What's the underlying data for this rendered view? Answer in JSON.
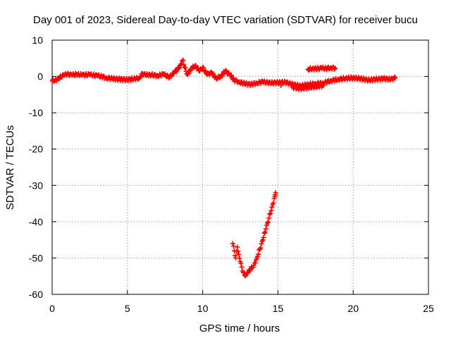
{
  "chart_data": {
    "type": "scatter",
    "title": "Day 001 of 2023, Sidereal Day-to-day VTEC variation (SDTVAR) for receiver bucu",
    "xlabel": "GPS time / hours",
    "ylabel": "SDTVAR / TECUs",
    "xlim": [
      0,
      25
    ],
    "ylim": [
      -60,
      10
    ],
    "xticks": [
      "0",
      "5",
      "10",
      "15",
      "20",
      "25"
    ],
    "yticks": [
      "10",
      "0",
      "-10",
      "-20",
      "-30",
      "-40",
      "-50",
      "-60"
    ],
    "grid": true,
    "marker": "+",
    "series": [
      {
        "name": "SDTVAR",
        "color": "#ff0000",
        "points": [
          [
            0.0,
            -1.2
          ],
          [
            0.2,
            -1.0
          ],
          [
            0.4,
            -0.6
          ],
          [
            0.6,
            0.0
          ],
          [
            0.8,
            0.4
          ],
          [
            1.0,
            0.6
          ],
          [
            1.3,
            0.4
          ],
          [
            1.6,
            0.6
          ],
          [
            2.0,
            0.4
          ],
          [
            2.5,
            0.5
          ],
          [
            3.0,
            0.2
          ],
          [
            3.3,
            0.0
          ],
          [
            3.6,
            -0.4
          ],
          [
            4.0,
            -0.6
          ],
          [
            4.5,
            -0.8
          ],
          [
            5.0,
            -0.9
          ],
          [
            5.5,
            -0.6
          ],
          [
            5.8,
            -0.4
          ],
          [
            6.0,
            0.8
          ],
          [
            6.2,
            0.4
          ],
          [
            6.5,
            0.5
          ],
          [
            7.0,
            0.2
          ],
          [
            7.4,
            0.6
          ],
          [
            7.8,
            -0.2
          ],
          [
            8.0,
            0.8
          ],
          [
            8.3,
            1.8
          ],
          [
            8.5,
            3.0
          ],
          [
            8.7,
            4.5
          ],
          [
            8.8,
            2.5
          ],
          [
            9.0,
            0.5
          ],
          [
            9.2,
            2.0
          ],
          [
            9.5,
            3.0
          ],
          [
            9.8,
            1.5
          ],
          [
            10.0,
            2.5
          ],
          [
            10.3,
            0.5
          ],
          [
            10.6,
            1.0
          ],
          [
            10.9,
            -0.5
          ],
          [
            11.2,
            0.0
          ],
          [
            11.5,
            1.5
          ],
          [
            11.8,
            0.5
          ],
          [
            12.1,
            -1.0
          ],
          [
            12.4,
            -1.5
          ],
          [
            12.8,
            -2.0
          ],
          [
            13.2,
            -2.2
          ],
          [
            13.6,
            -1.8
          ],
          [
            14.0,
            -1.5
          ],
          [
            14.5,
            -1.8
          ],
          [
            15.0,
            -1.7
          ],
          [
            15.5,
            -1.6
          ],
          [
            16.0,
            -2.2
          ],
          [
            16.5,
            -2.6
          ],
          [
            17.0,
            -2.2
          ],
          [
            17.5,
            -2.0
          ],
          [
            18.0,
            -1.8
          ],
          [
            18.5,
            -1.2
          ],
          [
            19.0,
            -0.8
          ],
          [
            19.5,
            -0.5
          ],
          [
            20.0,
            -0.4
          ],
          [
            20.5,
            -0.6
          ],
          [
            21.0,
            -1.0
          ],
          [
            21.5,
            -0.8
          ],
          [
            22.0,
            -0.6
          ],
          [
            22.5,
            -0.8
          ],
          [
            22.8,
            -0.4
          ],
          [
            17.0,
            2.0
          ],
          [
            17.3,
            2.2
          ],
          [
            17.6,
            2.1
          ],
          [
            17.9,
            2.3
          ],
          [
            18.2,
            2.2
          ],
          [
            18.5,
            2.4
          ],
          [
            18.8,
            2.3
          ],
          [
            15.2,
            -2.5
          ],
          [
            16.0,
            -3.0
          ],
          [
            16.5,
            -3.3
          ],
          [
            17.0,
            -3.0
          ],
          [
            17.5,
            -2.8
          ],
          [
            18.0,
            -2.5
          ],
          [
            12.0,
            -46.0
          ],
          [
            12.1,
            -48.0
          ],
          [
            12.2,
            -50.0
          ],
          [
            12.3,
            -47.0
          ],
          [
            12.4,
            -49.0
          ],
          [
            12.5,
            -51.0
          ],
          [
            12.6,
            -52.5
          ],
          [
            12.7,
            -54.0
          ],
          [
            12.8,
            -54.8
          ],
          [
            12.9,
            -54.5
          ],
          [
            13.0,
            -54.0
          ],
          [
            13.2,
            -53.0
          ],
          [
            13.4,
            -52.0
          ],
          [
            13.6,
            -50.0
          ],
          [
            13.8,
            -47.5
          ],
          [
            14.0,
            -45.0
          ],
          [
            14.2,
            -42.0
          ],
          [
            14.4,
            -39.0
          ],
          [
            14.6,
            -36.0
          ],
          [
            14.8,
            -33.0
          ],
          [
            14.85,
            -32.0
          ]
        ]
      }
    ]
  }
}
